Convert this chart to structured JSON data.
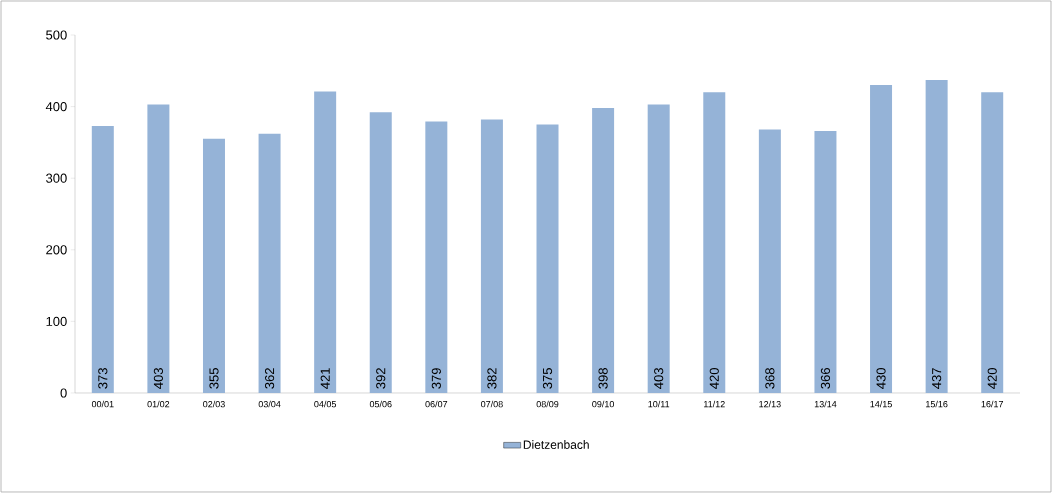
{
  "chart_data": {
    "type": "bar",
    "categories": [
      "00/01",
      "01/02",
      "02/03",
      "03/04",
      "04/05",
      "05/06",
      "06/07",
      "07/08",
      "08/09",
      "09/10",
      "10/11",
      "11/12",
      "12/13",
      "13/14",
      "14/15",
      "15/16",
      "16/17"
    ],
    "series": [
      {
        "name": "Dietzenbach",
        "color": "#95b3d7",
        "values": [
          373,
          403,
          355,
          362,
          421,
          392,
          379,
          382,
          375,
          398,
          403,
          420,
          368,
          366,
          430,
          437,
          420
        ]
      }
    ],
    "ylim": [
      0,
      500
    ],
    "yticks": [
      0,
      100,
      200,
      300,
      400,
      500
    ],
    "data_labels": true,
    "legend": "bottom",
    "grid": false
  }
}
